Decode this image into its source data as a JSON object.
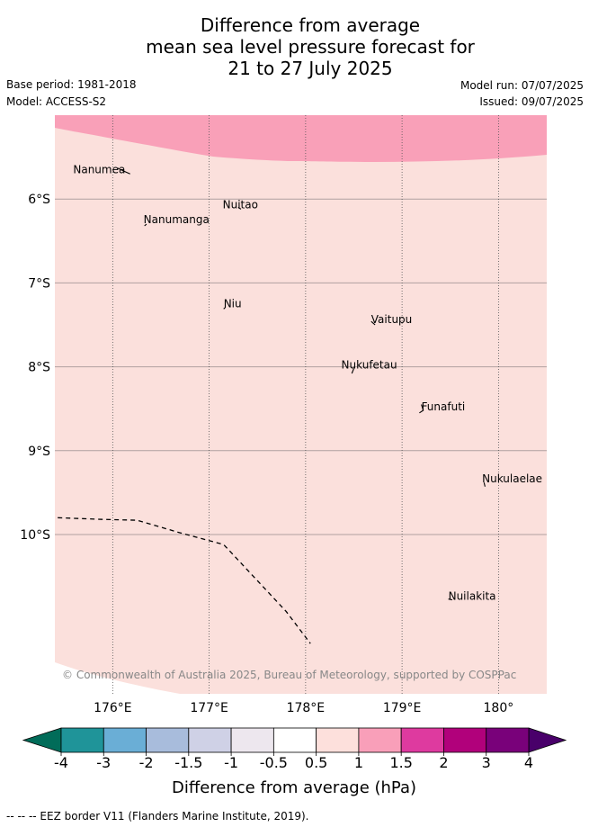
{
  "title_lines": [
    "Difference from average",
    "mean sea level pressure forecast for",
    "21 to 27 July 2025"
  ],
  "meta": {
    "base_period": "Base period: 1981-2018",
    "model": "Model: ACCESS-S2",
    "model_run": "Model run: 07/07/2025",
    "issued": "Issued: 09/07/2025"
  },
  "map": {
    "lon_range": [
      175.4,
      180.5
    ],
    "lat_range": [
      -11.9,
      -5.0
    ],
    "lon_ticks": [
      176,
      177,
      178,
      179,
      180
    ],
    "lon_tick_labels": [
      "176°E",
      "177°E",
      "178°E",
      "179°E",
      "180°"
    ],
    "lat_ticks": [
      -6,
      -7,
      -8,
      -9,
      -10
    ],
    "lat_tick_labels": [
      "6°S",
      "7°S",
      "8°S",
      "9°S",
      "10°S"
    ],
    "colors": {
      "band_0_5_to_1": "#fbe0dc",
      "band_1_to_1_5": "#f9a0b8"
    },
    "places": [
      {
        "name": "Nanumea",
        "lon": 175.59,
        "lat": -5.69
      },
      {
        "name": "Nuitao",
        "lon": 177.14,
        "lat": -6.11
      },
      {
        "name": "Nanumanga",
        "lon": 176.32,
        "lat": -6.29
      },
      {
        "name": "Niu",
        "lon": 177.15,
        "lat": -7.29
      },
      {
        "name": "Vaitupu",
        "lon": 178.68,
        "lat": -7.48
      },
      {
        "name": "Nukufetau",
        "lon": 178.37,
        "lat": -8.02
      },
      {
        "name": "Funafuti",
        "lon": 179.2,
        "lat": -8.52
      },
      {
        "name": "Nukulaelae",
        "lon": 179.83,
        "lat": -9.38
      },
      {
        "name": "Nuilakita",
        "lon": 179.48,
        "lat": -10.78
      }
    ],
    "eez_border": [
      {
        "lon": 175.43,
        "lat": -9.8
      },
      {
        "lon": 175.9,
        "lat": -9.82
      },
      {
        "lon": 176.25,
        "lat": -9.83
      },
      {
        "lon": 176.7,
        "lat": -9.98
      },
      {
        "lon": 177.15,
        "lat": -10.12
      },
      {
        "lon": 177.5,
        "lat": -10.55
      },
      {
        "lon": 177.8,
        "lat": -10.92
      },
      {
        "lon": 178.05,
        "lat": -11.3
      }
    ],
    "copyright": "© Commonwealth of Australia 2025, Bureau of Meteorology, supported by COSPPac"
  },
  "colorbar": {
    "boundaries": [
      -4,
      -3,
      -2,
      -1.5,
      -1,
      -0.5,
      0.5,
      1,
      1.5,
      2,
      3,
      4
    ],
    "tick_labels": [
      "-4",
      "-3",
      "-2",
      "-1.5",
      "-1",
      "-0.5",
      "0.5",
      "1",
      "1.5",
      "2",
      "3",
      "4"
    ],
    "colors": [
      "#1f9499",
      "#6aaed6",
      "#a8bcdc",
      "#cfd1e6",
      "#ede7ee",
      "#ffffff",
      "#fde0dc",
      "#f99fb9",
      "#de3a9f",
      "#b1017b",
      "#79017a"
    ],
    "under_color": "#016c59",
    "over_color": "#49006a",
    "title": "Difference from average (hPa)"
  },
  "footnote": "--  --  -- EEZ border V11 (Flanders Marine Institute, 2019)."
}
